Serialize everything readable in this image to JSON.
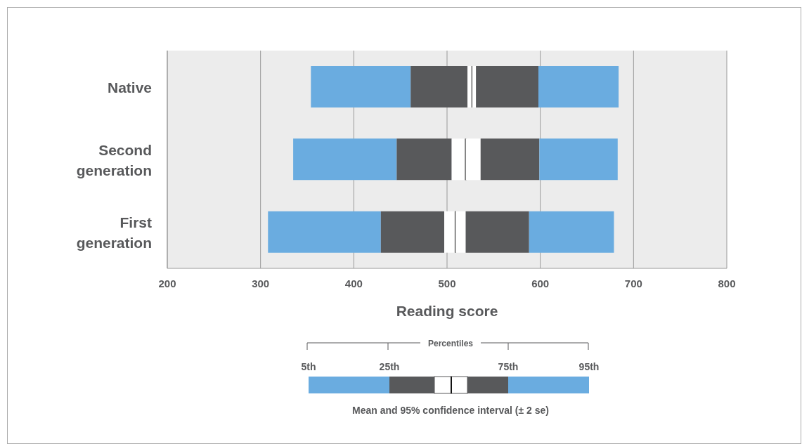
{
  "chart_data": {
    "type": "bar",
    "orientation": "horizontal",
    "xlabel": "Reading score",
    "categories": [
      "Native",
      "Second generation",
      "First generation"
    ],
    "series": [
      {
        "color": "#6aace0",
        "base": [
          354,
          335,
          308
        ],
        "values": [
          107,
          111,
          121
        ]
      },
      {
        "color": "#58595b",
        "base": [
          461,
          446,
          429
        ],
        "values": [
          61,
          59,
          68
        ]
      },
      {
        "color": "#ffffff",
        "base": [
          522,
          505,
          497
        ],
        "values": [
          5,
          15,
          12
        ]
      },
      {
        "color": "#ffffff",
        "base": [
          527,
          520,
          509
        ],
        "values": [
          4,
          16,
          11
        ]
      },
      {
        "color": "#58595b",
        "base": [
          531,
          536,
          520
        ],
        "values": [
          67,
          63,
          68
        ]
      },
      {
        "color": "#6aace0",
        "base": [
          598,
          599,
          588
        ],
        "values": [
          86,
          84,
          91
        ]
      }
    ],
    "xlim": [
      200,
      800
    ],
    "xticks": [
      200,
      300,
      400,
      500,
      600,
      700,
      800
    ],
    "grid": "x",
    "annotations": [
      "Percentiles",
      "5th",
      "25th",
      "75th",
      "95th",
      "Mean and 95% confidence interval (± 2 se)"
    ]
  }
}
